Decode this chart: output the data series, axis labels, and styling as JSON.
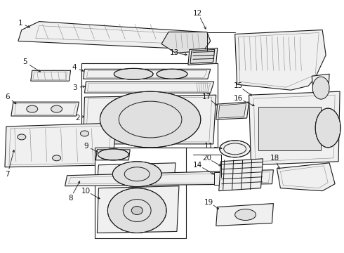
{
  "bg_color": "#ffffff",
  "line_color": "#1a1a1a",
  "fill_light": "#f0f0f0",
  "fill_mid": "#e0e0e0",
  "fill_dark": "#cccccc"
}
